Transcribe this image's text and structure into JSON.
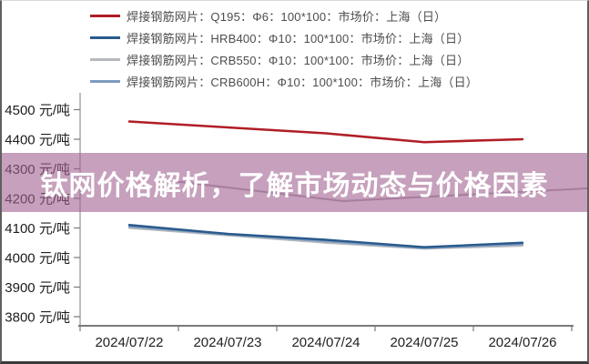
{
  "banner": {
    "text": "钛网价格解析，了解市场动态与价格因素",
    "bg_color": "#a06090",
    "text_color": "#ffffff"
  },
  "chart_data": {
    "type": "line",
    "categories": [
      "2024/07/22",
      "2024/07/23",
      "2024/07/24",
      "2024/07/25",
      "2024/07/26"
    ],
    "series": [
      {
        "name": "焊接钢筋网片：Q195：Φ6：100*100：市场价：上海（日）",
        "color": "#b01e26",
        "values": [
          4460,
          4440,
          4420,
          4390,
          4400
        ]
      },
      {
        "name": "焊接钢筋网片：HRB400：Φ10：100*100：市场价：上海（日）",
        "color": "#2a5a8c",
        "values": [
          4110,
          4080,
          4060,
          4035,
          4050
        ]
      },
      {
        "name": "焊接钢筋网片：CRB550：Φ10：100*100：市场价：上海（日）",
        "color": "#b6babf",
        "values": [
          4100,
          4075,
          4050,
          4030,
          4040
        ]
      },
      {
        "name": "焊接钢筋网片：CRB600H：Φ10：100*100：市场价：上海（日）",
        "color": "#7e9bbf",
        "values": [
          4105,
          4078,
          4055,
          4032,
          4045
        ]
      }
    ],
    "yticks": [
      4500,
      4400,
      4300,
      4200,
      4100,
      4000,
      3900,
      3800
    ],
    "ytick_suffix": " 元/吨",
    "ylabel": "元/吨",
    "xlabel": "",
    "ylim": [
      3770,
      4560
    ],
    "grid": false,
    "legend_position": "top-left"
  }
}
